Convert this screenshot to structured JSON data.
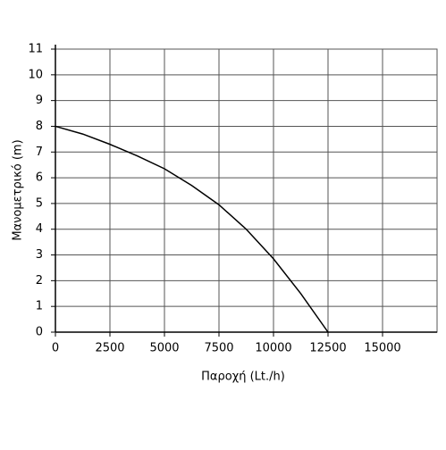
{
  "chart_data": {
    "type": "line",
    "x_label": "Παροχή (Lt./h)",
    "y_label": "Μανομετρικό  (m)",
    "x": [
      0,
      1250,
      2500,
      3750,
      5000,
      6250,
      7500,
      8750,
      10000,
      11250,
      12500
    ],
    "series": [
      {
        "color": "#000000",
        "values": [
          8,
          7.7,
          7.3,
          6.85,
          6.35,
          5.7,
          4.95,
          4.0,
          2.85,
          1.5,
          0
        ]
      }
    ],
    "xlim": [
      0,
      17500
    ],
    "xticks": [
      0,
      2500,
      5000,
      7500,
      10000,
      12500,
      15000
    ],
    "ylim": [
      0,
      11
    ],
    "yticks": [
      0,
      1,
      2,
      3,
      4,
      5,
      6,
      7,
      8,
      9,
      10,
      11
    ],
    "grid": true
  }
}
